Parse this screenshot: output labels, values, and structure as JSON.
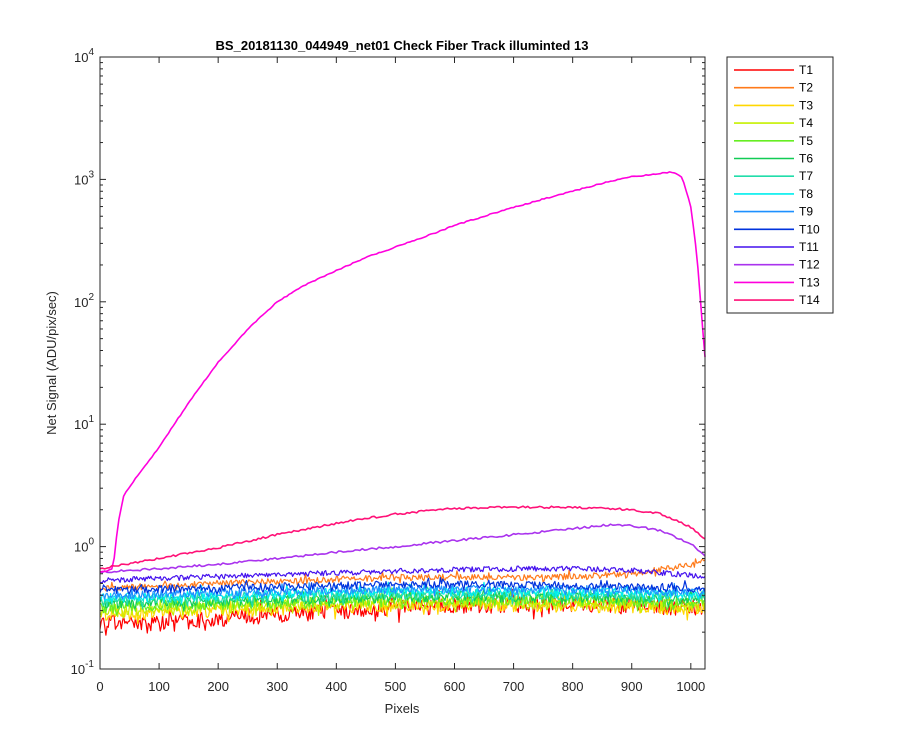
{
  "chart_data": {
    "type": "line",
    "title": "BS_20181130_044949_net01   Check Fiber     Track illuminted 13",
    "xlabel": "Pixels",
    "ylabel": "Net Signal (ADU/pix/sec)",
    "xlim": [
      0,
      1024
    ],
    "ylim": [
      0.1,
      10000
    ],
    "yscale": "log",
    "grid": false,
    "legend_position": "outside-top-right",
    "x_ticks": [
      0,
      100,
      200,
      300,
      400,
      500,
      600,
      700,
      800,
      900,
      1000
    ],
    "x_tick_labels": [
      "0",
      "100",
      "200",
      "300",
      "400",
      "500",
      "600",
      "700",
      "800",
      "900",
      "1000"
    ],
    "y_ticks": [
      0.1,
      1,
      10,
      100,
      1000,
      10000
    ],
    "y_tick_labels": [
      {
        "base": "10",
        "exp": "-1"
      },
      {
        "base": "10",
        "exp": "0"
      },
      {
        "base": "10",
        "exp": "1"
      },
      {
        "base": "10",
        "exp": "2"
      },
      {
        "base": "10",
        "exp": "3"
      },
      {
        "base": "10",
        "exp": "4"
      }
    ],
    "series": [
      {
        "name": "T1",
        "color": "#ff0000",
        "noise": 0.15,
        "x": [
          0,
          100,
          200,
          300,
          400,
          500,
          600,
          700,
          800,
          900,
          1024
        ],
        "y": [
          0.24,
          0.24,
          0.26,
          0.28,
          0.3,
          0.32,
          0.33,
          0.34,
          0.34,
          0.33,
          0.32
        ]
      },
      {
        "name": "T2",
        "color": "#ff7a1a",
        "noise": 0.06,
        "x": [
          0,
          100,
          200,
          300,
          400,
          500,
          600,
          700,
          800,
          900,
          980,
          1024
        ],
        "y": [
          0.45,
          0.48,
          0.5,
          0.52,
          0.54,
          0.56,
          0.56,
          0.56,
          0.57,
          0.6,
          0.68,
          0.75
        ]
      },
      {
        "name": "T3",
        "color": "#ffd700",
        "noise": 0.12,
        "x": [
          0,
          100,
          200,
          300,
          400,
          500,
          600,
          700,
          800,
          900,
          1024
        ],
        "y": [
          0.28,
          0.29,
          0.3,
          0.31,
          0.32,
          0.33,
          0.33,
          0.33,
          0.33,
          0.32,
          0.31
        ]
      },
      {
        "name": "T4",
        "color": "#c6f000",
        "noise": 0.12,
        "x": [
          0,
          100,
          200,
          300,
          400,
          500,
          600,
          700,
          800,
          900,
          1024
        ],
        "y": [
          0.3,
          0.31,
          0.32,
          0.33,
          0.34,
          0.35,
          0.35,
          0.35,
          0.35,
          0.34,
          0.33
        ]
      },
      {
        "name": "T5",
        "color": "#66ee22",
        "noise": 0.11,
        "x": [
          0,
          100,
          200,
          300,
          400,
          500,
          600,
          700,
          800,
          900,
          1024
        ],
        "y": [
          0.32,
          0.33,
          0.34,
          0.35,
          0.36,
          0.37,
          0.37,
          0.37,
          0.37,
          0.36,
          0.35
        ]
      },
      {
        "name": "T6",
        "color": "#11cc55",
        "noise": 0.1,
        "x": [
          0,
          100,
          200,
          300,
          400,
          500,
          600,
          700,
          800,
          900,
          1024
        ],
        "y": [
          0.34,
          0.35,
          0.36,
          0.37,
          0.38,
          0.39,
          0.39,
          0.39,
          0.39,
          0.38,
          0.37
        ]
      },
      {
        "name": "T7",
        "color": "#22ddaa",
        "noise": 0.1,
        "x": [
          0,
          100,
          200,
          300,
          400,
          500,
          600,
          700,
          800,
          900,
          1024
        ],
        "y": [
          0.36,
          0.37,
          0.38,
          0.39,
          0.4,
          0.41,
          0.41,
          0.41,
          0.41,
          0.4,
          0.39
        ]
      },
      {
        "name": "T8",
        "color": "#00eeee",
        "noise": 0.09,
        "x": [
          0,
          100,
          200,
          300,
          400,
          500,
          600,
          700,
          800,
          900,
          1024
        ],
        "y": [
          0.38,
          0.39,
          0.4,
          0.41,
          0.42,
          0.43,
          0.43,
          0.43,
          0.43,
          0.42,
          0.4
        ]
      },
      {
        "name": "T9",
        "color": "#1e90ff",
        "noise": 0.08,
        "x": [
          0,
          100,
          200,
          300,
          400,
          500,
          600,
          700,
          800,
          900,
          1024
        ],
        "y": [
          0.4,
          0.41,
          0.42,
          0.43,
          0.44,
          0.45,
          0.45,
          0.45,
          0.45,
          0.44,
          0.42
        ]
      },
      {
        "name": "T10",
        "color": "#0033dd",
        "noise": 0.07,
        "x": [
          0,
          100,
          200,
          300,
          400,
          500,
          600,
          700,
          800,
          900,
          1024
        ],
        "y": [
          0.44,
          0.45,
          0.46,
          0.47,
          0.48,
          0.49,
          0.49,
          0.49,
          0.48,
          0.47,
          0.45
        ]
      },
      {
        "name": "T11",
        "color": "#4411ee",
        "noise": 0.05,
        "x": [
          0,
          100,
          200,
          300,
          400,
          500,
          600,
          700,
          800,
          900,
          1024
        ],
        "y": [
          0.53,
          0.55,
          0.57,
          0.59,
          0.61,
          0.63,
          0.65,
          0.66,
          0.66,
          0.64,
          0.57
        ]
      },
      {
        "name": "T12",
        "color": "#aa33ee",
        "noise": 0.02,
        "x": [
          0,
          100,
          200,
          300,
          400,
          500,
          600,
          700,
          800,
          860,
          900,
          950,
          1000,
          1024
        ],
        "y": [
          0.62,
          0.66,
          0.72,
          0.8,
          0.9,
          1.0,
          1.12,
          1.25,
          1.4,
          1.5,
          1.48,
          1.35,
          1.05,
          0.85
        ]
      },
      {
        "name": "T13",
        "color": "#ff00dd",
        "noise": 0.01,
        "x": [
          0,
          20,
          25,
          30,
          40,
          60,
          100,
          150,
          200,
          250,
          300,
          350,
          400,
          450,
          500,
          550,
          600,
          650,
          700,
          750,
          800,
          850,
          900,
          950,
          970,
          985,
          1000,
          1010,
          1018,
          1024
        ],
        "y": [
          0.62,
          0.65,
          0.85,
          1.5,
          2.6,
          3.6,
          6.5,
          15,
          32,
          60,
          100,
          140,
          180,
          230,
          280,
          340,
          420,
          500,
          590,
          690,
          800,
          930,
          1050,
          1120,
          1150,
          1050,
          600,
          250,
          80,
          35
        ]
      },
      {
        "name": "T14",
        "color": "#ff1177",
        "noise": 0.02,
        "x": [
          0,
          100,
          200,
          300,
          400,
          500,
          600,
          700,
          800,
          900,
          950,
          1000,
          1024
        ],
        "y": [
          0.66,
          0.8,
          0.98,
          1.25,
          1.55,
          1.85,
          2.05,
          2.1,
          2.1,
          2.0,
          1.85,
          1.45,
          1.15
        ]
      }
    ]
  }
}
